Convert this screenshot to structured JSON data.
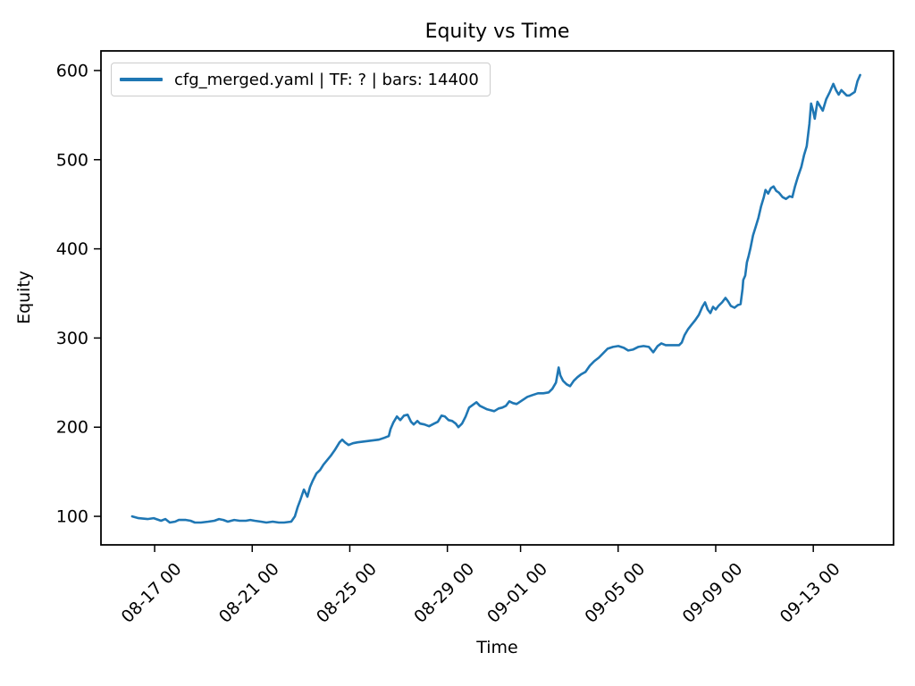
{
  "legend": {
    "label": "cfg_merged.yaml | TF: ? | bars: 14400",
    "line_color": "#1f77b4"
  },
  "chart_data": {
    "type": "line",
    "title": "Equity vs Time",
    "xlabel": "Time",
    "ylabel": "Equity",
    "grid": false,
    "legend_position": "upper left",
    "x_unit": "days (offset from 08-16 00:00, labels MM-DD HH)",
    "x_axis": {
      "lim": [
        -1.2,
        31.29
      ],
      "ticks": [
        {
          "pos": 1,
          "label": "08-17 00"
        },
        {
          "pos": 5,
          "label": "08-21 00"
        },
        {
          "pos": 9,
          "label": "08-25 00"
        },
        {
          "pos": 13,
          "label": "08-29 00"
        },
        {
          "pos": 16,
          "label": "09-01 00"
        },
        {
          "pos": 20,
          "label": "09-05 00"
        },
        {
          "pos": 24,
          "label": "09-09 00"
        },
        {
          "pos": 28,
          "label": "09-13 00"
        }
      ]
    },
    "y_axis": {
      "lim": [
        68,
        622
      ],
      "ticks": [
        100,
        200,
        300,
        400,
        500,
        600
      ]
    },
    "series": [
      {
        "name": "cfg_merged.yaml | TF: ? | bars: 14400",
        "color": "#1f77b4",
        "points": [
          [
            0.08,
            100
          ],
          [
            0.34,
            98
          ],
          [
            0.71,
            97
          ],
          [
            0.96,
            98
          ],
          [
            1.26,
            95
          ],
          [
            1.44,
            97
          ],
          [
            1.62,
            93
          ],
          [
            1.84,
            94
          ],
          [
            1.99,
            96
          ],
          [
            2.28,
            96
          ],
          [
            2.47,
            95
          ],
          [
            2.65,
            93
          ],
          [
            2.9,
            93
          ],
          [
            3.2,
            94
          ],
          [
            3.45,
            95
          ],
          [
            3.64,
            97
          ],
          [
            3.82,
            96
          ],
          [
            4.0,
            94
          ],
          [
            4.26,
            96
          ],
          [
            4.48,
            95
          ],
          [
            4.74,
            95
          ],
          [
            4.92,
            96
          ],
          [
            5.1,
            95
          ],
          [
            5.36,
            94
          ],
          [
            5.58,
            93
          ],
          [
            5.84,
            94
          ],
          [
            6.09,
            93
          ],
          [
            6.31,
            93
          ],
          [
            6.6,
            94
          ],
          [
            6.75,
            100
          ],
          [
            6.86,
            110
          ],
          [
            6.97,
            118
          ],
          [
            7.04,
            124
          ],
          [
            7.12,
            130
          ],
          [
            7.19,
            126
          ],
          [
            7.26,
            122
          ],
          [
            7.37,
            133
          ],
          [
            7.48,
            140
          ],
          [
            7.63,
            148
          ],
          [
            7.78,
            152
          ],
          [
            7.92,
            158
          ],
          [
            8.07,
            163
          ],
          [
            8.22,
            168
          ],
          [
            8.4,
            175
          ],
          [
            8.58,
            183
          ],
          [
            8.69,
            186
          ],
          [
            8.8,
            183
          ],
          [
            8.95,
            180
          ],
          [
            9.13,
            182
          ],
          [
            9.32,
            183
          ],
          [
            9.61,
            184
          ],
          [
            9.9,
            185
          ],
          [
            10.19,
            186
          ],
          [
            10.41,
            188
          ],
          [
            10.6,
            190
          ],
          [
            10.67,
            198
          ],
          [
            10.78,
            205
          ],
          [
            10.93,
            212
          ],
          [
            11.07,
            208
          ],
          [
            11.22,
            213
          ],
          [
            11.37,
            214
          ],
          [
            11.51,
            206
          ],
          [
            11.62,
            203
          ],
          [
            11.77,
            207
          ],
          [
            11.88,
            204
          ],
          [
            12.06,
            203
          ],
          [
            12.25,
            201
          ],
          [
            12.46,
            204
          ],
          [
            12.61,
            206
          ],
          [
            12.76,
            213
          ],
          [
            12.9,
            212
          ],
          [
            13.05,
            208
          ],
          [
            13.2,
            207
          ],
          [
            13.34,
            204
          ],
          [
            13.45,
            200
          ],
          [
            13.6,
            204
          ],
          [
            13.75,
            212
          ],
          [
            13.89,
            222
          ],
          [
            14.04,
            225
          ],
          [
            14.19,
            228
          ],
          [
            14.33,
            224
          ],
          [
            14.48,
            222
          ],
          [
            14.63,
            220
          ],
          [
            14.77,
            219
          ],
          [
            14.92,
            218
          ],
          [
            15.1,
            221
          ],
          [
            15.25,
            222
          ],
          [
            15.4,
            224
          ],
          [
            15.54,
            229
          ],
          [
            15.69,
            227
          ],
          [
            15.84,
            226
          ],
          [
            16.06,
            230
          ],
          [
            16.28,
            234
          ],
          [
            16.49,
            236
          ],
          [
            16.71,
            238
          ],
          [
            16.93,
            238
          ],
          [
            17.15,
            239
          ],
          [
            17.3,
            243
          ],
          [
            17.45,
            250
          ],
          [
            17.56,
            267
          ],
          [
            17.63,
            258
          ],
          [
            17.74,
            252
          ],
          [
            17.89,
            248
          ],
          [
            18.03,
            246
          ],
          [
            18.18,
            252
          ],
          [
            18.33,
            256
          ],
          [
            18.47,
            259
          ],
          [
            18.66,
            262
          ],
          [
            18.84,
            269
          ],
          [
            19.02,
            274
          ],
          [
            19.21,
            278
          ],
          [
            19.39,
            283
          ],
          [
            19.57,
            288
          ],
          [
            19.79,
            290
          ],
          [
            20.01,
            291
          ],
          [
            20.23,
            289
          ],
          [
            20.41,
            286
          ],
          [
            20.6,
            287
          ],
          [
            20.82,
            290
          ],
          [
            21.04,
            291
          ],
          [
            21.26,
            290
          ],
          [
            21.44,
            284
          ],
          [
            21.62,
            291
          ],
          [
            21.77,
            294
          ],
          [
            21.95,
            292
          ],
          [
            22.14,
            292
          ],
          [
            22.32,
            292
          ],
          [
            22.5,
            292
          ],
          [
            22.61,
            295
          ],
          [
            22.72,
            303
          ],
          [
            22.87,
            310
          ],
          [
            23.01,
            315
          ],
          [
            23.16,
            320
          ],
          [
            23.31,
            326
          ],
          [
            23.45,
            335
          ],
          [
            23.56,
            340
          ],
          [
            23.67,
            332
          ],
          [
            23.78,
            328
          ],
          [
            23.89,
            335
          ],
          [
            24.0,
            332
          ],
          [
            24.11,
            336
          ],
          [
            24.26,
            340
          ],
          [
            24.4,
            345
          ],
          [
            24.51,
            341
          ],
          [
            24.62,
            336
          ],
          [
            24.77,
            334
          ],
          [
            24.91,
            337
          ],
          [
            25.02,
            338
          ],
          [
            25.1,
            355
          ],
          [
            25.13,
            365
          ],
          [
            25.21,
            370
          ],
          [
            25.28,
            385
          ],
          [
            25.35,
            392
          ],
          [
            25.42,
            400
          ],
          [
            25.53,
            415
          ],
          [
            25.64,
            425
          ],
          [
            25.75,
            435
          ],
          [
            25.86,
            448
          ],
          [
            25.97,
            458
          ],
          [
            26.04,
            466
          ],
          [
            26.15,
            462
          ],
          [
            26.26,
            468
          ],
          [
            26.37,
            470
          ],
          [
            26.48,
            465
          ],
          [
            26.59,
            463
          ],
          [
            26.74,
            458
          ],
          [
            26.88,
            456
          ],
          [
            27.03,
            459
          ],
          [
            27.14,
            458
          ],
          [
            27.25,
            470
          ],
          [
            27.36,
            480
          ],
          [
            27.51,
            492
          ],
          [
            27.62,
            505
          ],
          [
            27.73,
            515
          ],
          [
            27.84,
            540
          ],
          [
            27.91,
            563
          ],
          [
            27.99,
            555
          ],
          [
            28.06,
            546
          ],
          [
            28.17,
            565
          ],
          [
            28.28,
            560
          ],
          [
            28.39,
            555
          ],
          [
            28.53,
            568
          ],
          [
            28.68,
            576
          ],
          [
            28.82,
            585
          ],
          [
            28.93,
            578
          ],
          [
            29.04,
            573
          ],
          [
            29.15,
            578
          ],
          [
            29.26,
            575
          ],
          [
            29.37,
            572
          ],
          [
            29.48,
            572
          ],
          [
            29.59,
            574
          ],
          [
            29.7,
            576
          ],
          [
            29.81,
            588
          ],
          [
            29.92,
            595
          ]
        ]
      }
    ]
  }
}
